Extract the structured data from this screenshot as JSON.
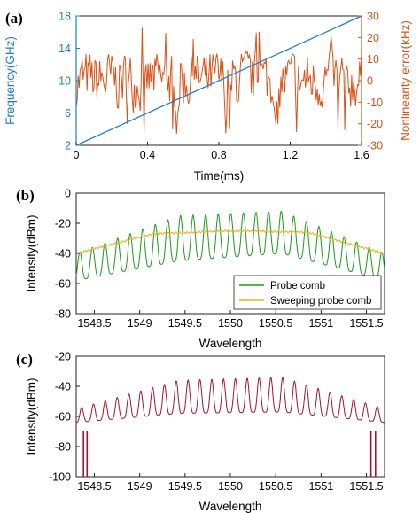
{
  "colors": {
    "frequency": "#1f7fbf",
    "error": "#d95319",
    "probe": "#1a9a1a",
    "sweeping": "#edb120",
    "spectrum": "#a2142f",
    "axis": "#222222"
  },
  "chart_data": [
    {
      "type": "line",
      "panel_label": "(a)",
      "xlabel": "Time(ms)",
      "ylabel_left": "Frequency(GHz)",
      "ylabel_right": "Nonlinearity error(kHz)",
      "xlim": [
        0,
        1.6
      ],
      "ylim_left": [
        2,
        18
      ],
      "ylim_right": [
        -30,
        30
      ],
      "xticks": [
        "0",
        "0.4",
        "0.8",
        "1.2",
        "1.6"
      ],
      "yticks_left": [
        "2",
        "6",
        "10",
        "14",
        "18"
      ],
      "yticks_right": [
        "-30",
        "-20",
        "-10",
        "0",
        "10",
        "20",
        "30"
      ],
      "series": [
        {
          "name": "Frequency",
          "axis": "left",
          "x": [
            0,
            1.6
          ],
          "y": [
            2,
            18
          ]
        },
        {
          "name": "Nonlinearity error",
          "axis": "right",
          "x_range": [
            0,
            1.6
          ],
          "amplitude_typical": 12,
          "extreme_max": 25,
          "extreme_min": -25
        }
      ]
    },
    {
      "type": "line",
      "panel_label": "(b)",
      "xlabel": "Wavelength",
      "ylabel": "Intensity(dBm)",
      "xlim": [
        1548.3,
        1551.7
      ],
      "ylim": [
        -80,
        0
      ],
      "xticks": [
        "1548.5",
        "1549",
        "1549.5",
        "1550",
        "1550.5",
        "1551",
        "1551.5"
      ],
      "yticks": [
        "0",
        "-20",
        "-40",
        "-60",
        "-80"
      ],
      "legend_position": "bottom-right",
      "series": [
        {
          "name": "Probe comb",
          "type": "comb",
          "peak_count": 25,
          "peak_x": [
            1548.34,
            1551.67
          ],
          "peak_level_dBm": [
            -40,
            -15,
            -12,
            -40
          ],
          "trough_level_dBm": [
            -58,
            -45,
            -40,
            -58
          ]
        },
        {
          "name": "Sweeping probe comb",
          "type": "envelope",
          "level_dBm": [
            -40,
            -27,
            -25,
            -26,
            -40
          ]
        }
      ]
    },
    {
      "type": "line",
      "panel_label": "(c)",
      "xlabel": "Wavelength",
      "ylabel": "Intensity(dBm)",
      "xlim": [
        1548.3,
        1551.7
      ],
      "ylim": [
        -100,
        -20
      ],
      "xticks": [
        "1548.5",
        "1549",
        "1549.5",
        "1550",
        "1550.5",
        "1551",
        "1551.5"
      ],
      "yticks": [
        "-20",
        "-40",
        "-60",
        "-80",
        "-100"
      ],
      "series": [
        {
          "type": "comb",
          "peak_count": 26,
          "peak_level_dBm": [
            -55,
            -36,
            -34,
            -55
          ],
          "trough_level_dBm": [
            -64,
            -58,
            -57,
            -64
          ],
          "edge_dips_dBm": -100
        }
      ]
    }
  ]
}
